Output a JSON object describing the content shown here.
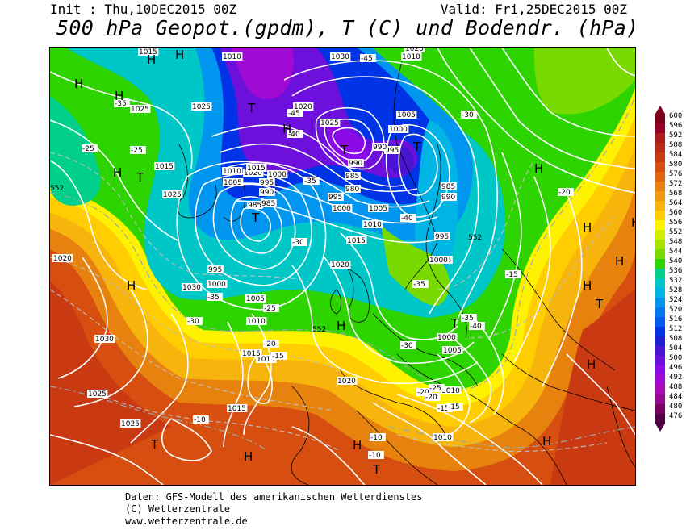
{
  "header": {
    "init": "Init : Thu,10DEC2015 00Z",
    "valid": "Valid: Fri,25DEC2015 00Z",
    "title": "500 hPa Geopot.(gpdm), T (C) und Bodendr. (hPa)"
  },
  "footer": {
    "line1": "Daten: GFS-Modell des amerikanischen Wetterdienstes",
    "line2": "(C) Wetterzentrale",
    "line3": "www.wetterzentrale.de"
  },
  "legend": {
    "values": [
      "600",
      "596",
      "592",
      "588",
      "584",
      "580",
      "576",
      "572",
      "568",
      "564",
      "560",
      "556",
      "552",
      "548",
      "544",
      "540",
      "536",
      "532",
      "528",
      "524",
      "520",
      "516",
      "512",
      "508",
      "504",
      "500",
      "496",
      "492",
      "488",
      "484",
      "480",
      "476"
    ],
    "colors": [
      "#7b0018",
      "#960024",
      "#ad1c1c",
      "#b82b14",
      "#c93a12",
      "#d64f10",
      "#e06610",
      "#e8820e",
      "#f09a0e",
      "#f7b40c",
      "#ffcd00",
      "#fff200",
      "#d2ee00",
      "#a9e400",
      "#78da00",
      "#2ed400",
      "#00d08c",
      "#00c7c7",
      "#00b4e6",
      "#0096f0",
      "#0078f2",
      "#005af0",
      "#0032e6",
      "#1e1ed2",
      "#4b14d2",
      "#6e10dc",
      "#8c0ae6",
      "#a00ad2",
      "#aa0ab4",
      "#960a8c",
      "#78005f",
      "#500046"
    ]
  },
  "pressure_labels": [
    {
      "text": "1010"
    },
    {
      "text": "1030"
    },
    {
      "text": "1010"
    },
    {
      "text": "1020"
    },
    {
      "text": "1020"
    },
    {
      "text": "1025"
    },
    {
      "text": "1025"
    },
    {
      "text": "1005"
    },
    {
      "text": "1000"
    },
    {
      "text": "995"
    },
    {
      "text": "990"
    },
    {
      "text": "985"
    },
    {
      "text": "980"
    },
    {
      "text": "990"
    },
    {
      "text": "1025"
    },
    {
      "text": "1015"
    },
    {
      "text": "1025"
    },
    {
      "text": "1030"
    },
    {
      "text": "1020"
    },
    {
      "text": "1010"
    },
    {
      "text": "1015"
    },
    {
      "text": "1005"
    },
    {
      "text": "1000"
    },
    {
      "text": "995"
    },
    {
      "text": "990"
    },
    {
      "text": "985"
    },
    {
      "text": "985"
    },
    {
      "text": "995"
    },
    {
      "text": "1000"
    },
    {
      "text": "1005"
    },
    {
      "text": "1010"
    },
    {
      "text": "1015"
    },
    {
      "text": "1015"
    },
    {
      "text": "1020"
    },
    {
      "text": "995"
    },
    {
      "text": "1000"
    },
    {
      "text": "1005"
    },
    {
      "text": "1010"
    },
    {
      "text": "1015"
    },
    {
      "text": "1015"
    },
    {
      "text": "1030"
    },
    {
      "text": "1025"
    },
    {
      "text": "1025"
    },
    {
      "text": "1020"
    },
    {
      "text": "1020"
    },
    {
      "text": "1010"
    },
    {
      "text": "1015"
    },
    {
      "text": "995"
    },
    {
      "text": "1000"
    },
    {
      "text": "1005"
    },
    {
      "text": "1000"
    },
    {
      "text": "985"
    },
    {
      "text": "990"
    },
    {
      "text": "995"
    },
    {
      "text": "1010"
    }
  ],
  "temp_labels": [
    {
      "text": "-45"
    },
    {
      "text": "-35"
    },
    {
      "text": "-25"
    },
    {
      "text": "-45"
    },
    {
      "text": "-40"
    },
    {
      "text": "-35"
    },
    {
      "text": "-30"
    },
    {
      "text": "-30"
    },
    {
      "text": "-35"
    },
    {
      "text": "-25"
    },
    {
      "text": "-20"
    },
    {
      "text": "-15"
    },
    {
      "text": "-10"
    },
    {
      "text": "-10"
    },
    {
      "text": "-10"
    },
    {
      "text": "-15"
    },
    {
      "text": "-20"
    },
    {
      "text": "-25"
    },
    {
      "text": "-30"
    },
    {
      "text": "-35"
    },
    {
      "text": "-40"
    },
    {
      "text": "-30"
    },
    {
      "text": "-20"
    },
    {
      "text": "-15"
    },
    {
      "text": "-25"
    },
    {
      "text": "-20"
    },
    {
      "text": "-15"
    },
    {
      "text": "-35"
    },
    {
      "text": "-40"
    }
  ],
  "geo_labels": [
    {
      "text": "552"
    },
    {
      "text": "552"
    },
    {
      "text": "552"
    }
  ],
  "centers": [
    {
      "type": "H"
    },
    {
      "type": "T"
    },
    {
      "type": "H"
    },
    {
      "type": "H"
    },
    {
      "type": "H"
    },
    {
      "type": "T"
    },
    {
      "type": "H"
    },
    {
      "type": "T"
    },
    {
      "type": "T"
    },
    {
      "type": "T"
    },
    {
      "type": "H"
    },
    {
      "type": "H"
    },
    {
      "type": "T"
    },
    {
      "type": "H"
    },
    {
      "type": "H"
    },
    {
      "type": "T"
    },
    {
      "type": "H"
    },
    {
      "type": "H"
    },
    {
      "type": "H"
    },
    {
      "type": "T"
    },
    {
      "type": "H"
    },
    {
      "type": "H"
    },
    {
      "type": "H"
    },
    {
      "type": "T"
    },
    {
      "type": "H"
    },
    {
      "type": "H"
    }
  ]
}
